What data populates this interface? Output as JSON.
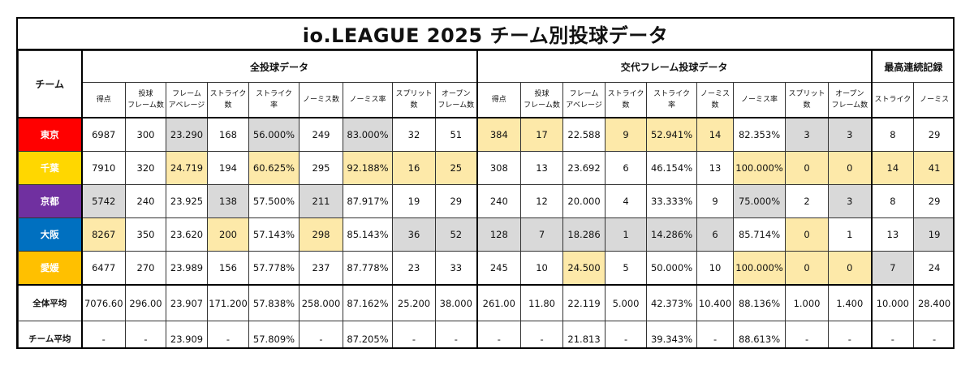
{
  "title": "io.LEAGUE  2025  チーム別投球データ",
  "team_header": "チーム",
  "groups": [
    {
      "label": "全投球データ",
      "span": 9
    },
    {
      "label": "交代フレーム投球データ",
      "span": 9
    },
    {
      "label": "最高連続記録",
      "span": 2
    }
  ],
  "columns": [
    "得点",
    "投球\nフレーム数",
    "フレーム\nアベレージ",
    "ストライク\n数",
    "ストライク\n率",
    "ノーミス数",
    "ノーミス率",
    "スプリット\n数",
    "オープン\nフレーム数",
    "得点",
    "投球\nフレーム数",
    "フレーム\nアベレージ",
    "ストライク\n数",
    "ストライク\n率",
    "ノーミス数",
    "ノーミス率",
    "スプリット\n数",
    "オープン\nフレーム数",
    "ストライク",
    "ノーミス"
  ],
  "highlight_colors": {
    "gray": "#d9d9d9",
    "yellow": "#fde9a9"
  },
  "teams": [
    {
      "name": "東京",
      "color": "#ff0000",
      "values": [
        "6987",
        "300",
        "23.290",
        "168",
        "56.000%",
        "249",
        "83.000%",
        "32",
        "51",
        "384",
        "17",
        "22.588",
        "9",
        "52.941%",
        "14",
        "82.353%",
        "3",
        "3",
        "8",
        "29"
      ],
      "highlights": [
        "",
        "",
        "gray",
        "",
        "gray",
        "",
        "gray",
        "",
        "",
        "yellow",
        "yellow",
        "",
        "yellow",
        "yellow",
        "yellow",
        "",
        "gray",
        "gray",
        "",
        ""
      ]
    },
    {
      "name": "千葉",
      "color": "#ffd700",
      "values": [
        "7910",
        "320",
        "24.719",
        "194",
        "60.625%",
        "295",
        "92.188%",
        "16",
        "25",
        "308",
        "13",
        "23.692",
        "6",
        "46.154%",
        "13",
        "100.000%",
        "0",
        "0",
        "14",
        "41"
      ],
      "highlights": [
        "",
        "",
        "yellow",
        "",
        "yellow",
        "",
        "yellow",
        "yellow",
        "yellow",
        "",
        "",
        "",
        "",
        "",
        "",
        "yellow",
        "yellow",
        "yellow",
        "yellow",
        "yellow"
      ]
    },
    {
      "name": "京都",
      "color": "#7030a0",
      "values": [
        "5742",
        "240",
        "23.925",
        "138",
        "57.500%",
        "211",
        "87.917%",
        "19",
        "29",
        "240",
        "12",
        "20.000",
        "4",
        "33.333%",
        "9",
        "75.000%",
        "2",
        "3",
        "8",
        "29"
      ],
      "highlights": [
        "gray",
        "",
        "",
        "gray",
        "",
        "gray",
        "",
        "",
        "",
        "",
        "",
        "",
        "",
        "",
        "",
        "gray",
        "",
        "gray",
        "",
        ""
      ]
    },
    {
      "name": "大阪",
      "color": "#0070c0",
      "values": [
        "8267",
        "350",
        "23.620",
        "200",
        "57.143%",
        "298",
        "85.143%",
        "36",
        "52",
        "128",
        "7",
        "18.286",
        "1",
        "14.286%",
        "6",
        "85.714%",
        "0",
        "1",
        "13",
        "19"
      ],
      "highlights": [
        "yellow",
        "",
        "",
        "yellow",
        "",
        "yellow",
        "",
        "gray",
        "gray",
        "gray",
        "gray",
        "gray",
        "gray",
        "gray",
        "gray",
        "",
        "yellow",
        "",
        "",
        "gray"
      ]
    },
    {
      "name": "愛媛",
      "color": "#ffc000",
      "values": [
        "6477",
        "270",
        "23.989",
        "156",
        "57.778%",
        "237",
        "87.778%",
        "23",
        "33",
        "245",
        "10",
        "24.500",
        "5",
        "50.000%",
        "10",
        "100.000%",
        "0",
        "0",
        "7",
        "24"
      ],
      "highlights": [
        "",
        "",
        "",
        "",
        "",
        "",
        "",
        "",
        "",
        "",
        "",
        "yellow",
        "",
        "",
        "",
        "yellow",
        "yellow",
        "yellow",
        "gray",
        ""
      ]
    }
  ],
  "averages": [
    {
      "label": "全体平均",
      "values": [
        "7076.60",
        "296.00",
        "23.907",
        "171.200",
        "57.838%",
        "258.000",
        "87.162%",
        "25.200",
        "38.000",
        "261.00",
        "11.80",
        "22.119",
        "5.000",
        "42.373%",
        "10.400",
        "88.136%",
        "1.000",
        "1.400",
        "10.000",
        "28.400"
      ]
    },
    {
      "label": "チーム平均",
      "values": [
        "-",
        "-",
        "23.909",
        "-",
        "57.809%",
        "-",
        "87.205%",
        "-",
        "-",
        "-",
        "-",
        "21.813",
        "-",
        "39.343%",
        "-",
        "88.613%",
        "-",
        "-",
        "-",
        "-"
      ]
    }
  ]
}
